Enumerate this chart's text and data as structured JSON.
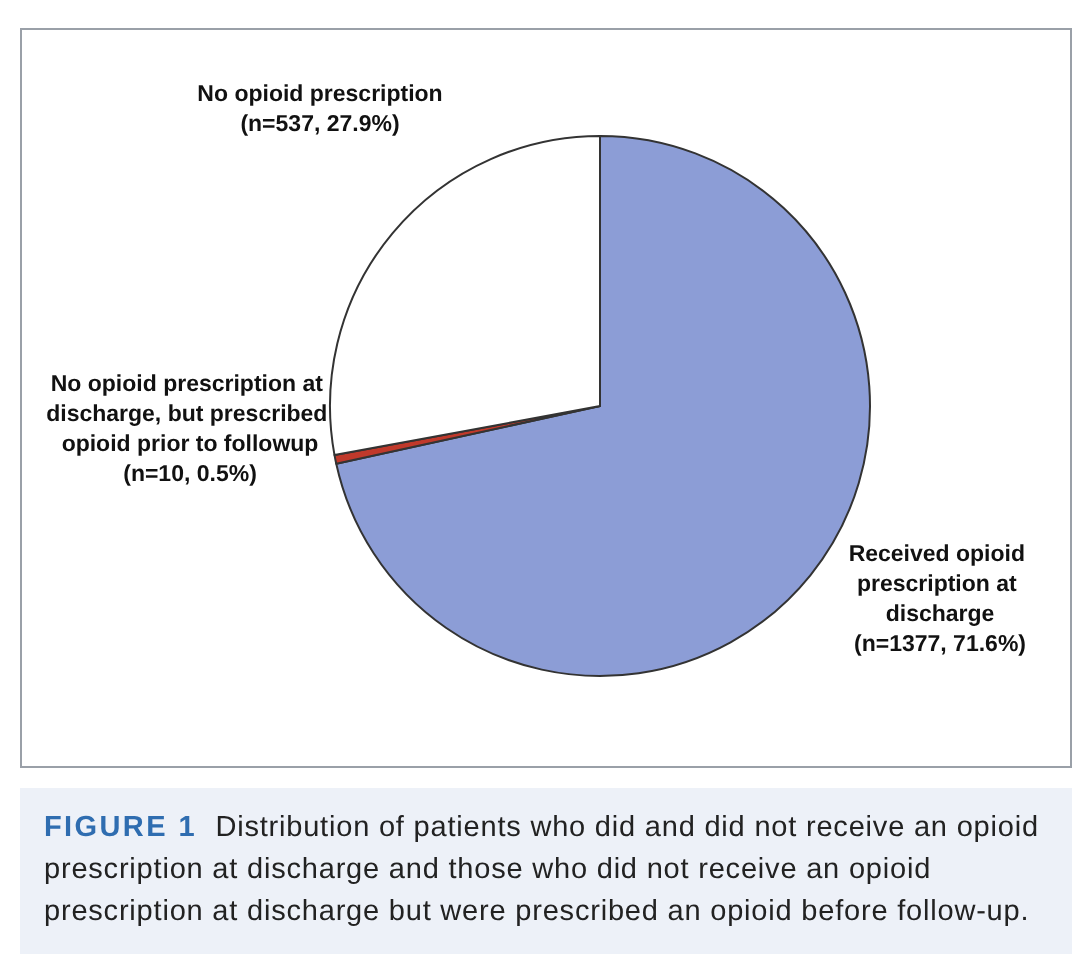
{
  "chart_data": {
    "type": "pie",
    "categories": [
      "Received opioid prescription at discharge",
      "No opioid prescription at discharge, but prescribed opioid prior to followup",
      "No opioid prescription"
    ],
    "values": [
      1377,
      10,
      537
    ],
    "value_labels": [
      "(n=1377, 71.6%)",
      "(n=10, 0.5%)",
      "(n=537, 27.9%)"
    ],
    "colors": [
      "#8c9dd6",
      "#c0392b",
      "#ffffff"
    ],
    "legend": false,
    "annotations": [
      "FIGURE 1",
      "Distribution of patients who did and did not receive an opioid prescription at discharge and those who did not receive an opioid prescription at discharge but were prescribed an opioid before follow-up."
    ]
  }
}
